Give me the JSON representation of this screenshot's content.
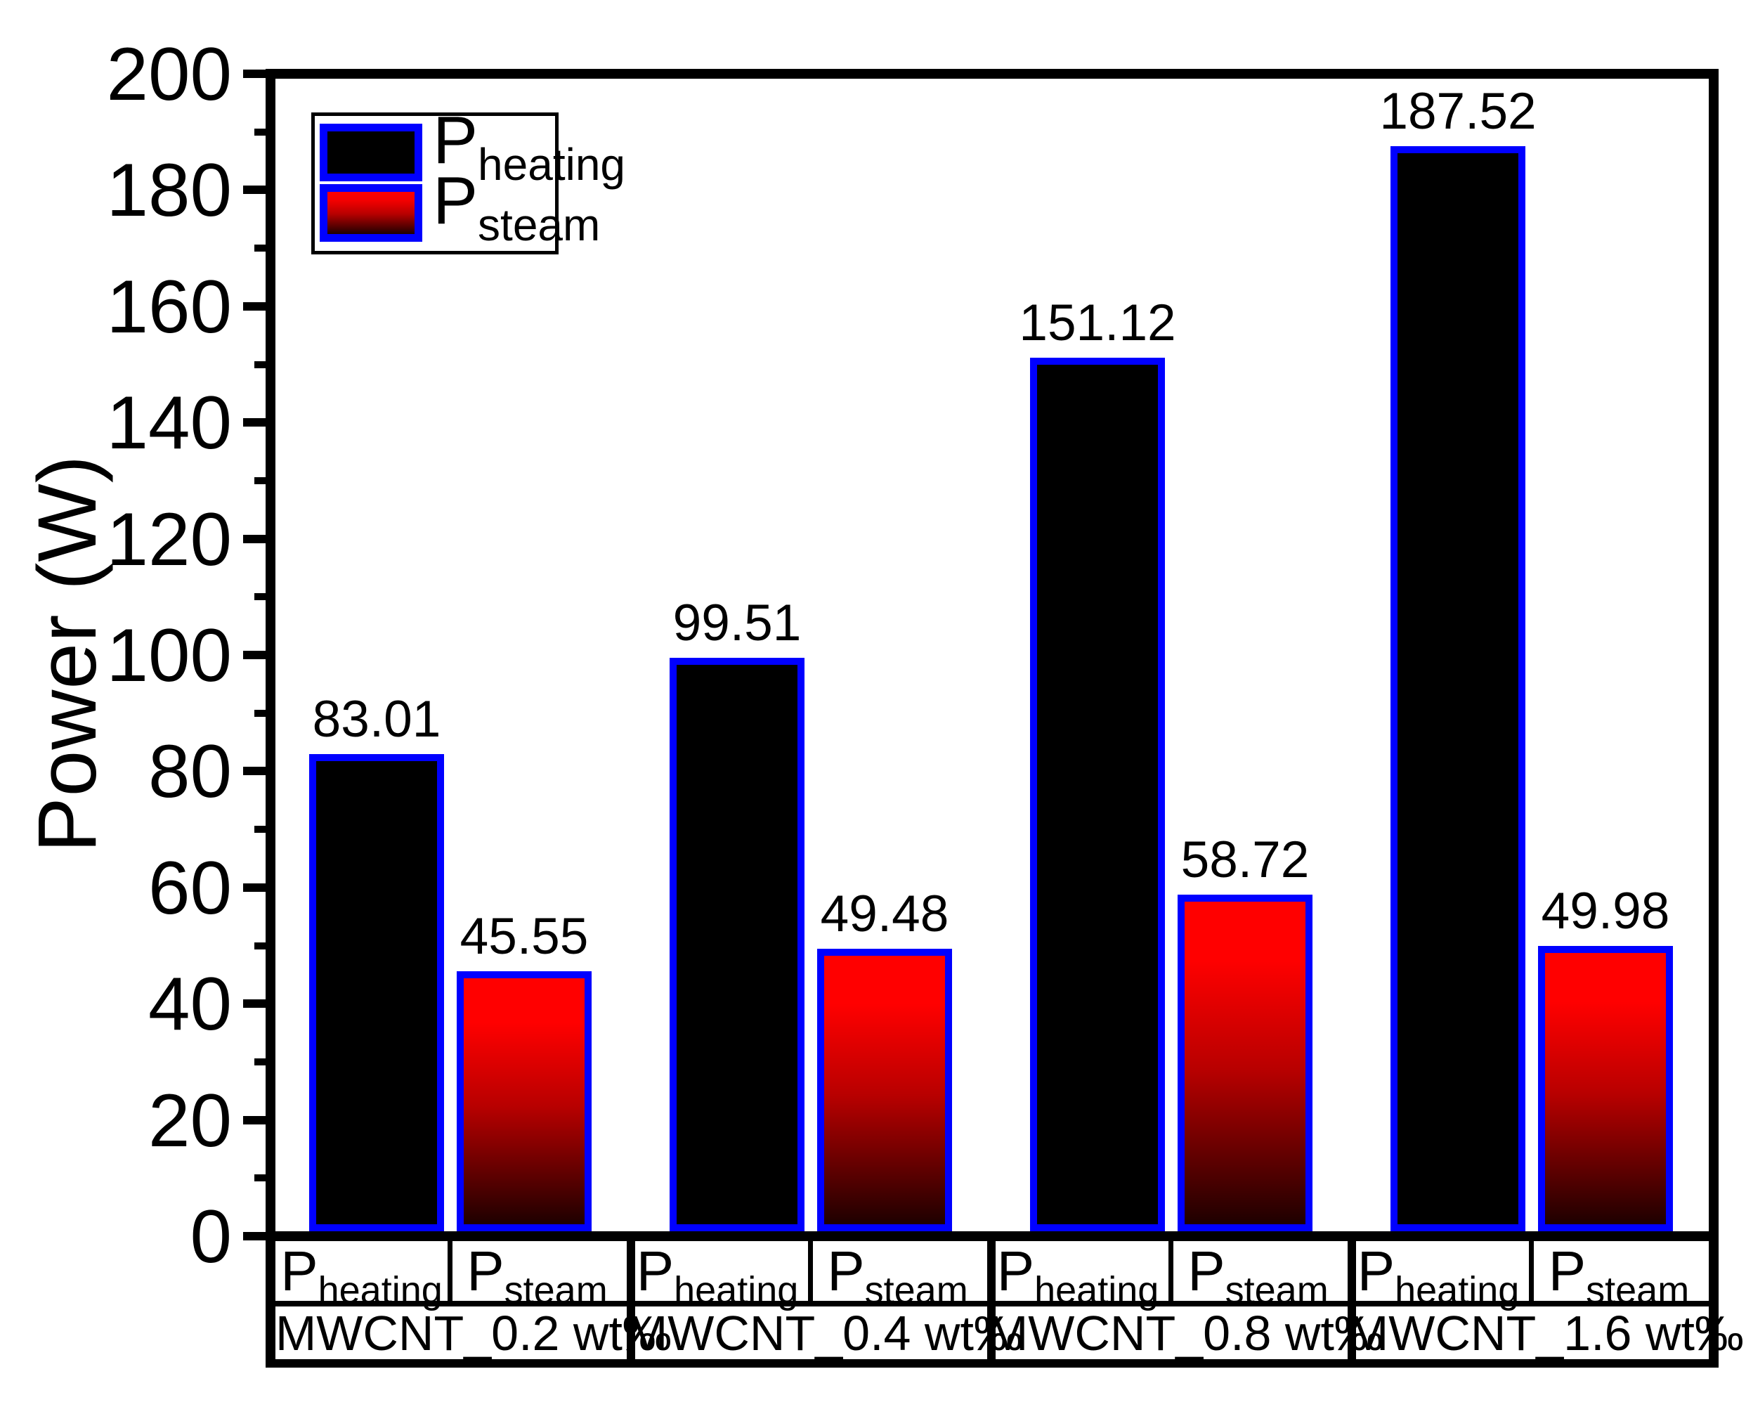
{
  "chart_data": {
    "type": "bar",
    "title": "",
    "ylabel": "Power (W)",
    "xlabel": "",
    "ylim": [
      0,
      200
    ],
    "y_major_ticks": [
      0,
      20,
      40,
      60,
      80,
      100,
      120,
      140,
      160,
      180,
      200
    ],
    "y_tick_labels": [
      "0",
      "20",
      "40",
      "60",
      "80",
      "100",
      "120",
      "140",
      "160",
      "180",
      "200"
    ],
    "y_minor_ticks": [
      10,
      30,
      50,
      70,
      90,
      110,
      130,
      150,
      170,
      190
    ],
    "grid": "off",
    "legend_position": "top-left",
    "categories": [
      "MWCNT_0.2 wt‰",
      "MWCNT_0.4 wt‰",
      "MWCNT_0.8 wt‰",
      "MWCNT_1.6 wt‰"
    ],
    "series": [
      {
        "name_base": "P",
        "name_sub": "heating",
        "fill": "#000000",
        "values": [
          83.01,
          99.51,
          151.12,
          187.52
        ]
      },
      {
        "name_base": "P",
        "name_sub": "steam",
        "fill_gradient_top": "#ff0000",
        "fill_gradient_bottom": "#1e0000",
        "values": [
          45.55,
          49.48,
          58.72,
          49.98
        ]
      }
    ],
    "bar_edge_color": "#0000ff",
    "value_labels_shown": true,
    "value_labels": [
      "83.01",
      "45.55",
      "99.51",
      "49.48",
      "151.12",
      "58.72",
      "187.52",
      "49.98"
    ],
    "colors": {
      "frame": "#000000",
      "heating_fill": "#000000",
      "steam_red": "#ff0000",
      "bar_edge_blue": "#0000ff",
      "background": "#ffffff"
    }
  }
}
